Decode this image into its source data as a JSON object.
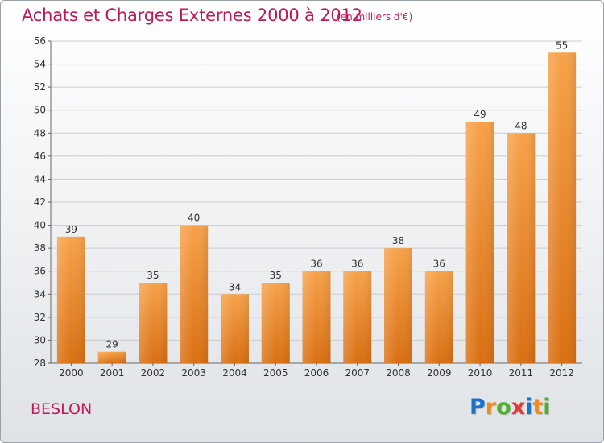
{
  "title": "Achats et Charges Externes 2000 à 2012",
  "subtitle": "(en milliers d'€)",
  "place": "BESLON",
  "logo": {
    "letters": [
      "P",
      "r",
      "o",
      "x",
      "i",
      "t",
      "i"
    ],
    "colors": [
      "#1a73c8",
      "#f08a1c",
      "#4caf2a",
      "#e53935",
      "#1a73c8",
      "#f08a1c",
      "#4caf2a"
    ]
  },
  "chart_data": {
    "type": "bar",
    "categories": [
      "2000",
      "2001",
      "2002",
      "2003",
      "2004",
      "2005",
      "2006",
      "2007",
      "2008",
      "2009",
      "2010",
      "2011",
      "2012"
    ],
    "values": [
      39,
      29,
      35,
      40,
      34,
      35,
      36,
      36,
      38,
      36,
      49,
      48,
      55
    ],
    "ylim": [
      28,
      56
    ],
    "yticks": [
      28,
      30,
      32,
      34,
      36,
      38,
      40,
      42,
      44,
      46,
      48,
      50,
      52,
      54,
      56
    ],
    "grid": true,
    "bar_color": "#f08a2c",
    "title": "Achats et Charges Externes 2000 à 2012",
    "xlabel": "",
    "ylabel": ""
  }
}
